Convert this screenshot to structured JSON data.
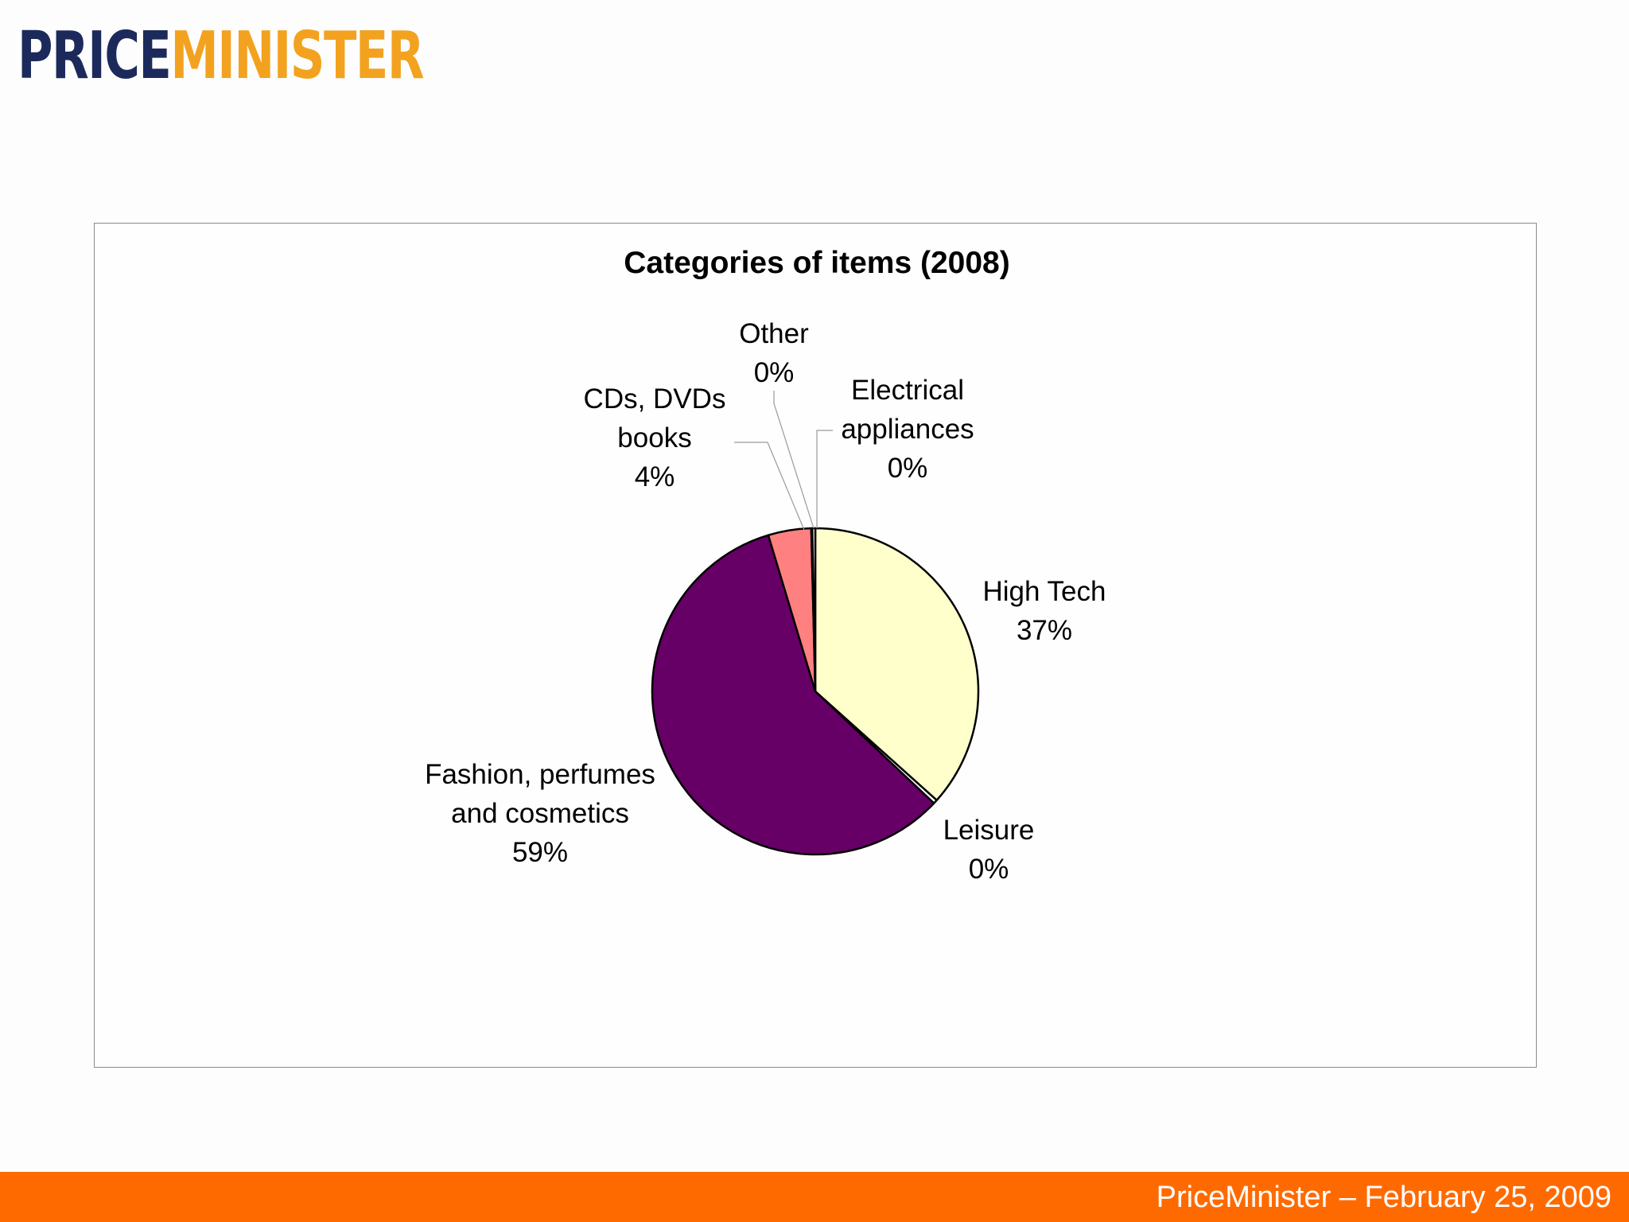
{
  "logo": {
    "part1": "PRICE",
    "part2": "MINISTER"
  },
  "footer": {
    "text": "PriceMinister – February 25, 2009"
  },
  "colors": {
    "accent_orange": "#ff6a00",
    "logo_navy": "#1c2a5b",
    "logo_gold": "#f3a21f"
  },
  "chart_data": {
    "type": "pie",
    "title": "Categories of items (2008)",
    "slices": [
      {
        "label_lines": [
          "High Tech",
          "37%"
        ],
        "value": 37,
        "color": "#ffffcc"
      },
      {
        "label_lines": [
          "Leisure",
          "0%"
        ],
        "value": 0.4,
        "color": "#ffffff"
      },
      {
        "label_lines": [
          "Fashion, perfumes",
          "and cosmetics",
          "59%"
        ],
        "value": 58.9,
        "color": "#660066"
      },
      {
        "label_lines": [
          "CDs, DVDs",
          "books",
          "4%"
        ],
        "value": 4.3,
        "color": "#ff8080"
      },
      {
        "label_lines": [
          "Other",
          "0%"
        ],
        "value": 0.1,
        "color": "#ffffff"
      },
      {
        "label_lines": [
          "Electrical",
          "appliances",
          "0%"
        ],
        "value": 0.3,
        "color": "#ffffff"
      }
    ],
    "legend": "none"
  }
}
